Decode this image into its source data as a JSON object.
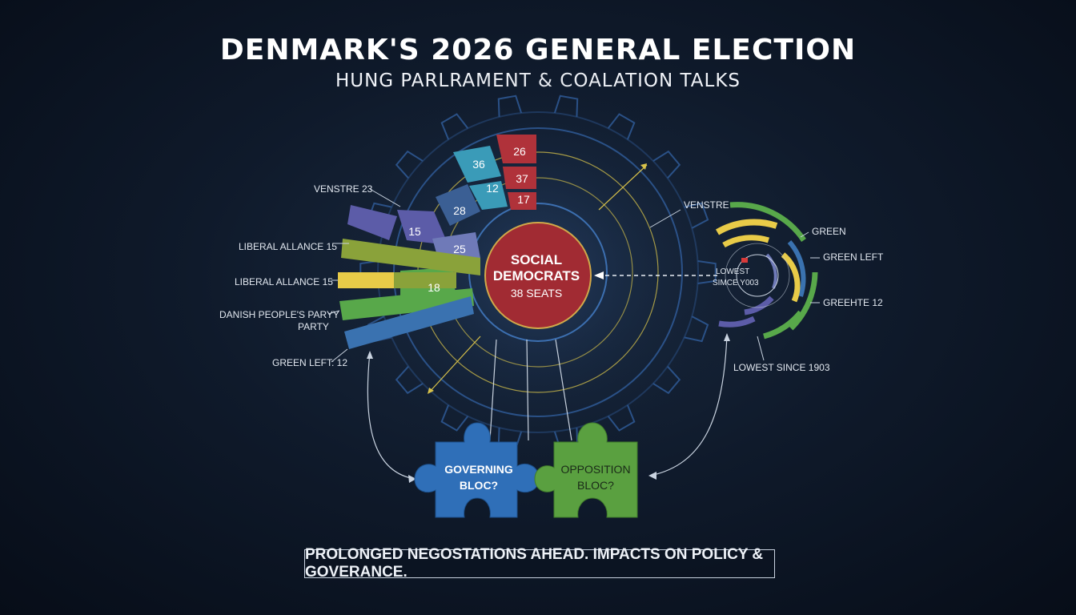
{
  "header": {
    "title": "DENMARK'S 2026 GENERAL ELECTION",
    "subtitle": "HUNG PARLRAMENT & COALATION TALKS"
  },
  "center": {
    "line1": "SOCIAL",
    "line2": "DEMOCRATS",
    "line3": "38 SEATS"
  },
  "inner_segments": [
    {
      "value": "26",
      "color": "#b0323a"
    },
    {
      "value": "37",
      "color": "#b0323a"
    },
    {
      "value": "17",
      "color": "#b0323a"
    },
    {
      "value": "36",
      "color": "#3a9bb8"
    },
    {
      "value": "12",
      "color": "#3a9bb8"
    },
    {
      "value": "28",
      "color": "#3b5f94"
    },
    {
      "value": "15",
      "color": "#5c5ca8"
    },
    {
      "value": "25",
      "color": "#6f7ab8"
    },
    {
      "value": "18",
      "color": "#58a84a"
    }
  ],
  "left_labels": {
    "venstre": "VENSTRE 23",
    "liberal1": "LIBERAL ALLANCE 15",
    "liberal2": "LIBERAL ALLANCE 15",
    "danish1": "DANISH PEOPLE'S PARYY",
    "danish2": "PARTY",
    "greenleft": "GREEN LEFT: 12"
  },
  "right_labels": {
    "venstre": "VENSTRE",
    "green": "GREEN",
    "greenleft": "GREEN LEFT",
    "lowest_inner1": "LOWEST",
    "lowest_inner2": "SIMCE Y003",
    "greenhte": "GREEHTE 12",
    "lowest_since": "LOWEST SINCE 1903"
  },
  "puzzle": {
    "governing1": "GOVERNING",
    "governing2": "BLOC?",
    "opposition1": "OPPOSITION",
    "opposition2": "BLOC?"
  },
  "footer": "PROLONGED NEGOSTATIONS AHEAD. IMPACTS ON POLICY & GOVERANCE.",
  "colors": {
    "red": "#b0323a",
    "teal": "#3a9bb8",
    "blue": "#3b5f94",
    "purple": "#5c5ca8",
    "green": "#58a84a",
    "yellow": "#d8c24a",
    "puzzle_blue": "#2f6fb8",
    "puzzle_green": "#5aa040"
  }
}
